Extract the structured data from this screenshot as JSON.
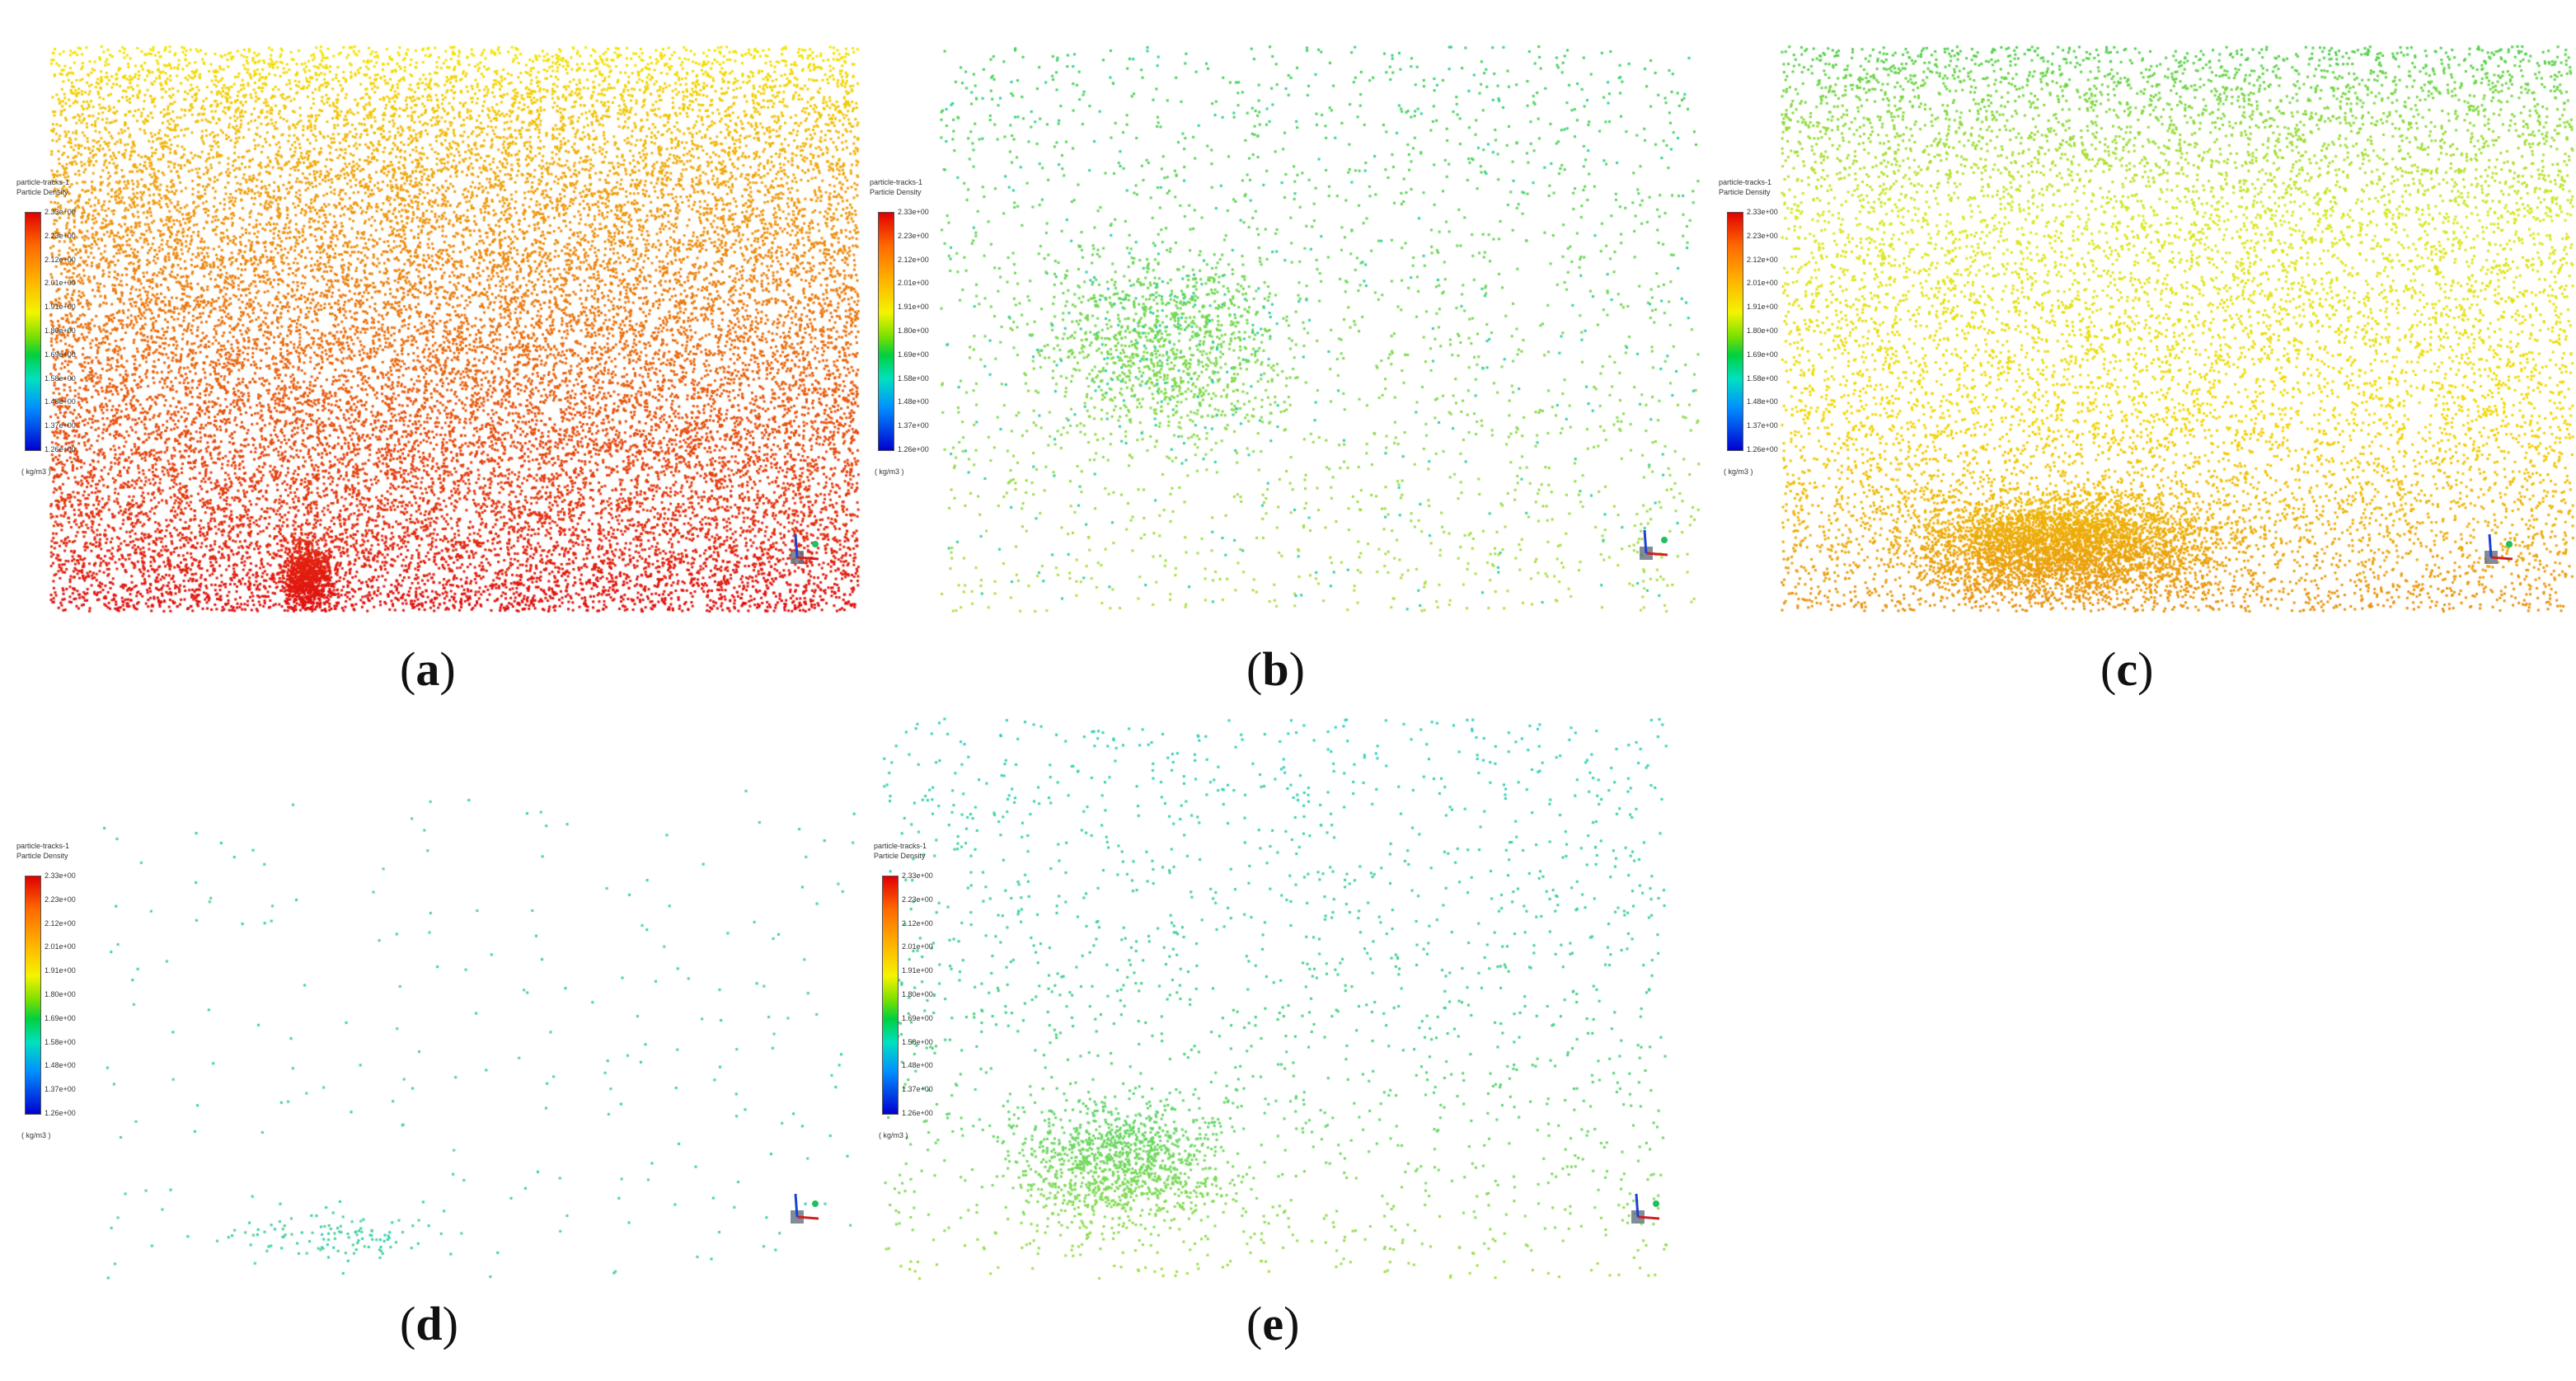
{
  "legend": {
    "title_line1": "particle-tracks-1",
    "title_line2": "Particle Density",
    "ticks": [
      "2.33e+00",
      "2.23e+00",
      "2.12e+00",
      "2.01e+00",
      "1.91e+00",
      "1.80e+00",
      "1.69e+00",
      "1.58e+00",
      "1.48e+00",
      "1.37e+00",
      "1.26e+00"
    ],
    "unit": "( kg/m3 )",
    "gradient_colors": [
      "#e00000",
      "#ff6a00",
      "#ffb000",
      "#f4f400",
      "#7ce000",
      "#00d040",
      "#00e0c0",
      "#0090ff",
      "#0000d0"
    ]
  },
  "panels": [
    {
      "id": "a",
      "caption": "a",
      "density_level": "high",
      "dominant_colors": [
        "#e03010",
        "#e87a10",
        "#f0c000",
        "#f4e600"
      ]
    },
    {
      "id": "b",
      "caption": "b",
      "density_level": "low",
      "dominant_colors": [
        "#40d060",
        "#9be040",
        "#30d0a0"
      ]
    },
    {
      "id": "c",
      "caption": "c",
      "density_level": "high",
      "dominant_colors": [
        "#e8a010",
        "#f0e020",
        "#70d040"
      ]
    },
    {
      "id": "d",
      "caption": "d",
      "density_level": "very-low",
      "dominant_colors": [
        "#30d0b0",
        "#50d090"
      ]
    },
    {
      "id": "e",
      "caption": "e",
      "density_level": "low",
      "dominant_colors": [
        "#30d0b0",
        "#60d050",
        "#a0e040"
      ]
    }
  ],
  "axis_triad_colors": {
    "x": "#d02020",
    "y": "#2040d0",
    "z": "#20c060",
    "cube": "#607080"
  }
}
